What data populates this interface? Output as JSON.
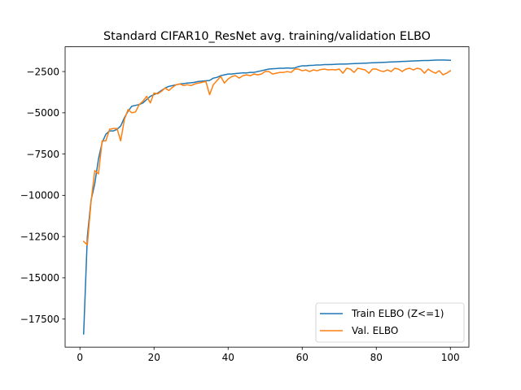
{
  "chart_data": {
    "type": "line",
    "title": "Standard CIFAR10_ResNet avg. training/validation ELBO",
    "xlabel": "",
    "ylabel": "",
    "xlim": [
      -4,
      105
    ],
    "ylim": [
      -19200,
      -1000
    ],
    "xticks": [
      0,
      20,
      40,
      60,
      80,
      100
    ],
    "xtick_labels": [
      "0",
      "20",
      "40",
      "60",
      "80",
      "100"
    ],
    "yticks": [
      -17500,
      -15000,
      -12500,
      -10000,
      -7500,
      -5000,
      -2500
    ],
    "ytick_labels": [
      "−17500",
      "−15000",
      "−12500",
      "−10000",
      "−7500",
      "−5000",
      "−2500"
    ],
    "grid": false,
    "legend_position": "lower-right",
    "x": [
      1,
      2,
      3,
      4,
      5,
      6,
      7,
      8,
      9,
      10,
      11,
      12,
      13,
      14,
      15,
      16,
      17,
      18,
      19,
      20,
      21,
      22,
      23,
      24,
      25,
      26,
      27,
      28,
      29,
      30,
      31,
      32,
      33,
      34,
      35,
      36,
      37,
      38,
      39,
      40,
      41,
      42,
      43,
      44,
      45,
      46,
      47,
      48,
      49,
      50,
      51,
      52,
      53,
      54,
      55,
      56,
      57,
      58,
      59,
      60,
      61,
      62,
      63,
      64,
      65,
      66,
      67,
      68,
      69,
      70,
      71,
      72,
      73,
      74,
      75,
      76,
      77,
      78,
      79,
      80,
      81,
      82,
      83,
      84,
      85,
      86,
      87,
      88,
      89,
      90,
      91,
      92,
      93,
      94,
      95,
      96,
      97,
      98,
      99,
      100
    ],
    "series": [
      {
        "name": "Train ELBO (Z<=1)",
        "color": "#1f77b4",
        "values": [
          -18400,
          -12500,
          -10300,
          -9300,
          -7800,
          -6800,
          -6300,
          -6100,
          -6100,
          -6000,
          -5800,
          -5300,
          -4900,
          -4600,
          -4550,
          -4500,
          -4400,
          -4200,
          -4000,
          -3900,
          -3800,
          -3650,
          -3500,
          -3400,
          -3350,
          -3300,
          -3250,
          -3230,
          -3200,
          -3180,
          -3150,
          -3100,
          -3080,
          -3060,
          -3040,
          -2900,
          -2850,
          -2750,
          -2700,
          -2650,
          -2650,
          -2620,
          -2600,
          -2580,
          -2580,
          -2550,
          -2550,
          -2500,
          -2450,
          -2400,
          -2350,
          -2330,
          -2320,
          -2300,
          -2300,
          -2280,
          -2300,
          -2280,
          -2200,
          -2150,
          -2150,
          -2130,
          -2120,
          -2100,
          -2100,
          -2080,
          -2080,
          -2070,
          -2060,
          -2050,
          -2050,
          -2040,
          -2030,
          -2020,
          -2010,
          -2000,
          -1990,
          -1980,
          -1970,
          -1960,
          -1950,
          -1940,
          -1930,
          -1920,
          -1910,
          -1900,
          -1890,
          -1880,
          -1870,
          -1860,
          -1850,
          -1840,
          -1830,
          -1830,
          -1820,
          -1810,
          -1800,
          -1800,
          -1810,
          -1820
        ]
      },
      {
        "name": "Val. ELBO",
        "color": "#ff7f0e",
        "values": [
          -12800,
          -13000,
          -10400,
          -8500,
          -8700,
          -6700,
          -6700,
          -6000,
          -5950,
          -5950,
          -6700,
          -5400,
          -4800,
          -5000,
          -4950,
          -4500,
          -4300,
          -4000,
          -4400,
          -3800,
          -3850,
          -3700,
          -3500,
          -3650,
          -3450,
          -3300,
          -3250,
          -3350,
          -3300,
          -3350,
          -3250,
          -3200,
          -3150,
          -3100,
          -3900,
          -3300,
          -3050,
          -2800,
          -3200,
          -2950,
          -2800,
          -2750,
          -2900,
          -2750,
          -2700,
          -2750,
          -2650,
          -2700,
          -2650,
          -2500,
          -2500,
          -2650,
          -2600,
          -2550,
          -2550,
          -2500,
          -2550,
          -2350,
          -2350,
          -2450,
          -2400,
          -2500,
          -2400,
          -2450,
          -2380,
          -2350,
          -2400,
          -2380,
          -2400,
          -2350,
          -2600,
          -2300,
          -2350,
          -2550,
          -2300,
          -2350,
          -2400,
          -2600,
          -2350,
          -2350,
          -2450,
          -2500,
          -2400,
          -2500,
          -2300,
          -2350,
          -2500,
          -2350,
          -2300,
          -2400,
          -2300,
          -2350,
          -2600,
          -2350,
          -2500,
          -2600,
          -2450,
          -2700,
          -2600,
          -2450
        ]
      }
    ]
  }
}
